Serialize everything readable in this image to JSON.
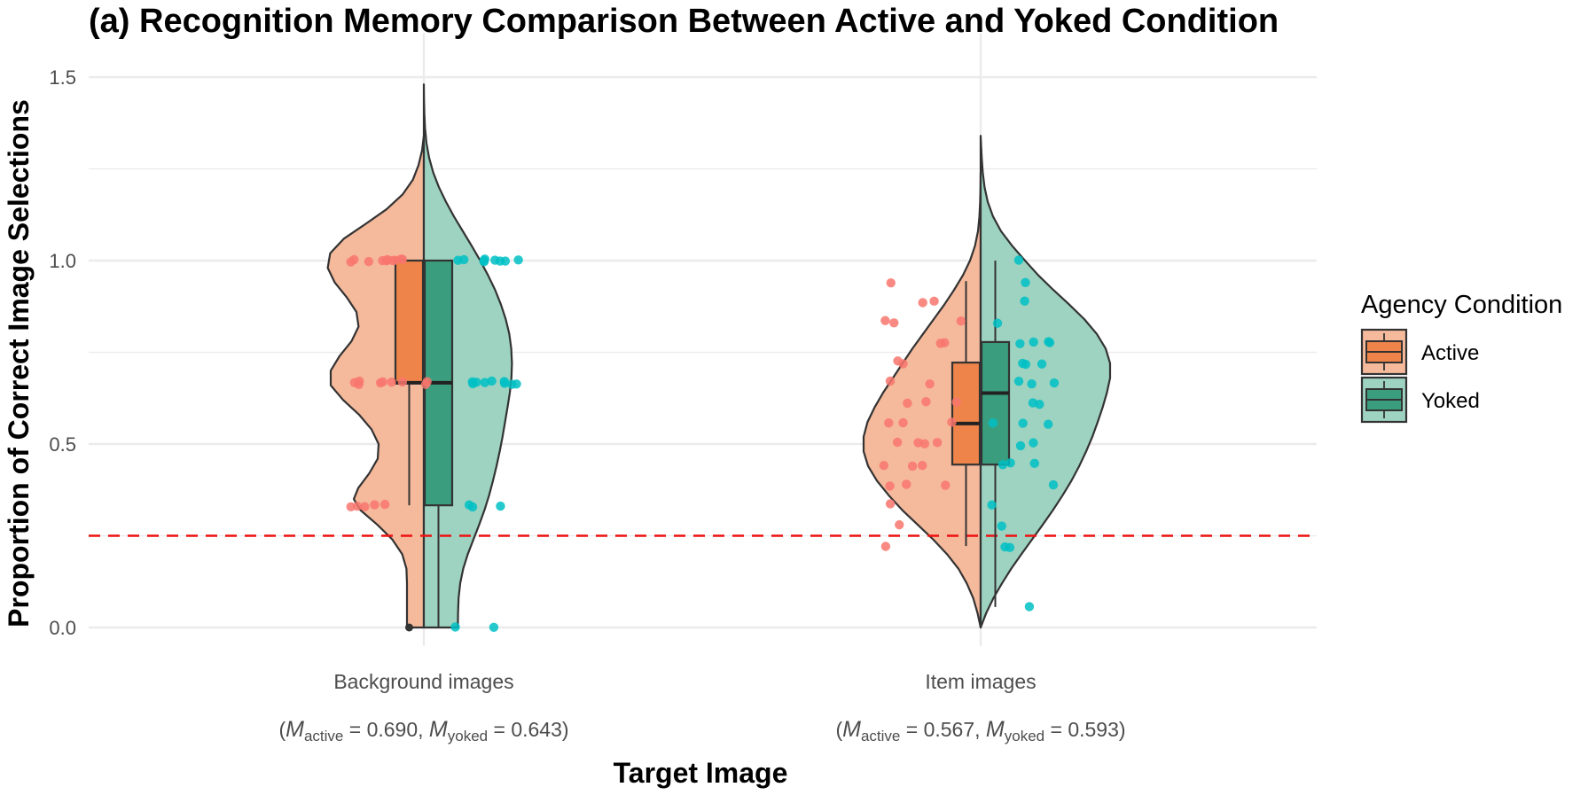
{
  "chart_data": {
    "type": "violin",
    "title": "(a) Recognition Memory Comparison Between Active and Yoked Condition",
    "xlabel": "Target Image",
    "ylabel": "Proportion of Correct Image Selections",
    "ylim": [
      -0.05,
      1.62
    ],
    "yticks": [
      "0.0",
      "0.5",
      "1.0",
      "1.5"
    ],
    "chance_level": 0.25,
    "legend": {
      "title": "Agency Condition",
      "placement": "right",
      "items": [
        {
          "label": "Active",
          "color": "#ee8449"
        },
        {
          "label": "Yoked",
          "color": "#3a9e7e"
        }
      ]
    },
    "colors": {
      "active_violin": "#f5b99b",
      "yoked_violin": "#9dd3c0",
      "active_box": "#ee8449",
      "yoked_box": "#3a9e7e",
      "active_points": "#f8766d",
      "yoked_points": "#00bfc4",
      "chance_line": "#ee1111",
      "grid": "#ebebeb"
    },
    "categories": [
      {
        "label": "Background images",
        "note": {
          "m_active": "0.690",
          "m_yoked": "0.643"
        },
        "active": {
          "box": {
            "q1": 0.667,
            "median": 0.667,
            "q3": 1.0,
            "whisker_low": 0.333,
            "whisker_high": 1.0
          },
          "outliers": [
            0.0
          ],
          "density": [
            [
              0.0,
              0.95
            ],
            [
              0.04,
              0.95
            ],
            [
              0.08,
              0.95
            ],
            [
              0.12,
              0.95
            ],
            [
              0.16,
              0.98
            ],
            [
              0.2,
              1.22
            ],
            [
              0.24,
              1.78
            ],
            [
              0.28,
              2.62
            ],
            [
              0.32,
              3.58
            ],
            [
              0.35,
              3.95
            ],
            [
              0.38,
              3.7
            ],
            [
              0.42,
              3.08
            ],
            [
              0.46,
              2.6
            ],
            [
              0.5,
              2.55
            ],
            [
              0.54,
              2.95
            ],
            [
              0.58,
              3.65
            ],
            [
              0.62,
              4.55
            ],
            [
              0.66,
              5.25
            ],
            [
              0.7,
              5.25
            ],
            [
              0.74,
              4.75
            ],
            [
              0.78,
              4.08
            ],
            [
              0.82,
              3.68
            ],
            [
              0.86,
              3.8
            ],
            [
              0.9,
              4.35
            ],
            [
              0.94,
              5.02
            ],
            [
              0.98,
              5.42
            ],
            [
              1.02,
              5.28
            ],
            [
              1.06,
              4.5
            ],
            [
              1.1,
              3.28
            ],
            [
              1.14,
              2.1
            ],
            [
              1.18,
              1.2
            ],
            [
              1.22,
              0.62
            ],
            [
              1.26,
              0.3
            ],
            [
              1.3,
              0.1
            ],
            [
              1.34,
              0.0
            ]
          ],
          "points": [
            1.0,
            1.0,
            1.0,
            1.0,
            1.0,
            1.0,
            1.0,
            1.0,
            1.0,
            1.0,
            0.667,
            0.667,
            0.667,
            0.667,
            0.667,
            0.667,
            0.667,
            0.667,
            0.667,
            0.333,
            0.333,
            0.333,
            0.333,
            0.333
          ]
        },
        "yoked": {
          "box": {
            "q1": 0.333,
            "median": 0.667,
            "q3": 1.0,
            "whisker_low": 0.0,
            "whisker_high": 1.0
          },
          "outliers": [],
          "density": [
            [
              0.0,
              1.92
            ],
            [
              0.04,
              1.93
            ],
            [
              0.08,
              1.96
            ],
            [
              0.12,
              2.05
            ],
            [
              0.16,
              2.22
            ],
            [
              0.2,
              2.48
            ],
            [
              0.24,
              2.8
            ],
            [
              0.28,
              3.12
            ],
            [
              0.32,
              3.42
            ],
            [
              0.36,
              3.68
            ],
            [
              0.4,
              3.9
            ],
            [
              0.44,
              4.1
            ],
            [
              0.48,
              4.28
            ],
            [
              0.52,
              4.44
            ],
            [
              0.56,
              4.58
            ],
            [
              0.6,
              4.72
            ],
            [
              0.64,
              4.85
            ],
            [
              0.68,
              4.94
            ],
            [
              0.72,
              4.97
            ],
            [
              0.76,
              4.93
            ],
            [
              0.8,
              4.82
            ],
            [
              0.84,
              4.62
            ],
            [
              0.88,
              4.35
            ],
            [
              0.92,
              4.02
            ],
            [
              0.96,
              3.62
            ],
            [
              1.0,
              3.18
            ],
            [
              1.04,
              2.7
            ],
            [
              1.08,
              2.2
            ],
            [
              1.12,
              1.7
            ],
            [
              1.16,
              1.25
            ],
            [
              1.2,
              0.85
            ],
            [
              1.24,
              0.53
            ],
            [
              1.28,
              0.3
            ],
            [
              1.32,
              0.15
            ],
            [
              1.36,
              0.07
            ],
            [
              1.4,
              0.03
            ],
            [
              1.44,
              0.01
            ],
            [
              1.48,
              0.0
            ]
          ],
          "points": [
            1.0,
            1.0,
            1.0,
            1.0,
            1.0,
            1.0,
            1.0,
            1.0,
            1.0,
            0.667,
            0.667,
            0.667,
            0.667,
            0.667,
            0.667,
            0.667,
            0.667,
            0.667,
            0.333,
            0.333,
            0.333,
            0.0,
            0.0
          ]
        }
      },
      {
        "label": "Item images",
        "note": {
          "m_active": "0.567",
          "m_yoked": "0.593"
        },
        "active": {
          "box": {
            "q1": 0.444,
            "median": 0.556,
            "q3": 0.722,
            "whisker_low": 0.222,
            "whisker_high": 0.944
          },
          "outliers": [],
          "density": [
            [
              0.0,
              0.0
            ],
            [
              0.04,
              0.18
            ],
            [
              0.08,
              0.42
            ],
            [
              0.12,
              0.78
            ],
            [
              0.16,
              1.25
            ],
            [
              0.2,
              1.9
            ],
            [
              0.24,
              2.68
            ],
            [
              0.28,
              3.55
            ],
            [
              0.32,
              4.42
            ],
            [
              0.36,
              5.18
            ],
            [
              0.4,
              5.85
            ],
            [
              0.44,
              6.35
            ],
            [
              0.48,
              6.6
            ],
            [
              0.52,
              6.6
            ],
            [
              0.56,
              6.38
            ],
            [
              0.6,
              5.98
            ],
            [
              0.64,
              5.5
            ],
            [
              0.68,
              4.95
            ],
            [
              0.72,
              4.4
            ],
            [
              0.76,
              3.85
            ],
            [
              0.8,
              3.25
            ],
            [
              0.84,
              2.65
            ],
            [
              0.88,
              2.05
            ],
            [
              0.92,
              1.5
            ],
            [
              0.96,
              1.0
            ],
            [
              1.0,
              0.6
            ],
            [
              1.04,
              0.32
            ],
            [
              1.08,
              0.15
            ],
            [
              1.12,
              0.07
            ],
            [
              1.16,
              0.03
            ],
            [
              1.2,
              0.01
            ],
            [
              1.24,
              0.0
            ]
          ],
          "points": [
            0.944,
            0.889,
            0.889,
            0.833,
            0.833,
            0.833,
            0.778,
            0.778,
            0.722,
            0.722,
            0.667,
            0.667,
            0.611,
            0.611,
            0.611,
            0.556,
            0.556,
            0.556,
            0.5,
            0.5,
            0.5,
            0.5,
            0.444,
            0.444,
            0.444,
            0.389,
            0.389,
            0.389,
            0.333,
            0.278,
            0.222
          ]
        },
        "yoked": {
          "box": {
            "q1": 0.444,
            "median": 0.639,
            "q3": 0.778,
            "whisker_low": 0.056,
            "whisker_high": 1.0
          },
          "outliers": [],
          "density": [
            [
              0.0,
              0.0
            ],
            [
              0.04,
              0.32
            ],
            [
              0.08,
              0.72
            ],
            [
              0.12,
              1.2
            ],
            [
              0.16,
              1.72
            ],
            [
              0.2,
              2.3
            ],
            [
              0.24,
              2.9
            ],
            [
              0.28,
              3.5
            ],
            [
              0.32,
              4.08
            ],
            [
              0.36,
              4.62
            ],
            [
              0.4,
              5.12
            ],
            [
              0.44,
              5.56
            ],
            [
              0.48,
              5.95
            ],
            [
              0.52,
              6.3
            ],
            [
              0.56,
              6.6
            ],
            [
              0.6,
              6.88
            ],
            [
              0.64,
              7.12
            ],
            [
              0.68,
              7.3
            ],
            [
              0.72,
              7.3
            ],
            [
              0.76,
              7.05
            ],
            [
              0.8,
              6.55
            ],
            [
              0.84,
              5.85
            ],
            [
              0.88,
              5.0
            ],
            [
              0.92,
              4.1
            ],
            [
              0.96,
              3.25
            ],
            [
              1.0,
              2.5
            ],
            [
              1.04,
              1.78
            ],
            [
              1.08,
              1.15
            ],
            [
              1.12,
              0.7
            ],
            [
              1.16,
              0.4
            ],
            [
              1.2,
              0.22
            ],
            [
              1.24,
              0.12
            ],
            [
              1.28,
              0.06
            ],
            [
              1.32,
              0.02
            ],
            [
              1.34,
              0.0
            ]
          ],
          "points": [
            1.0,
            0.944,
            0.889,
            0.833,
            0.778,
            0.778,
            0.778,
            0.778,
            0.722,
            0.722,
            0.722,
            0.667,
            0.667,
            0.667,
            0.611,
            0.611,
            0.556,
            0.556,
            0.556,
            0.5,
            0.5,
            0.444,
            0.444,
            0.444,
            0.389,
            0.333,
            0.278,
            0.222,
            0.222,
            0.056
          ]
        }
      }
    ]
  }
}
